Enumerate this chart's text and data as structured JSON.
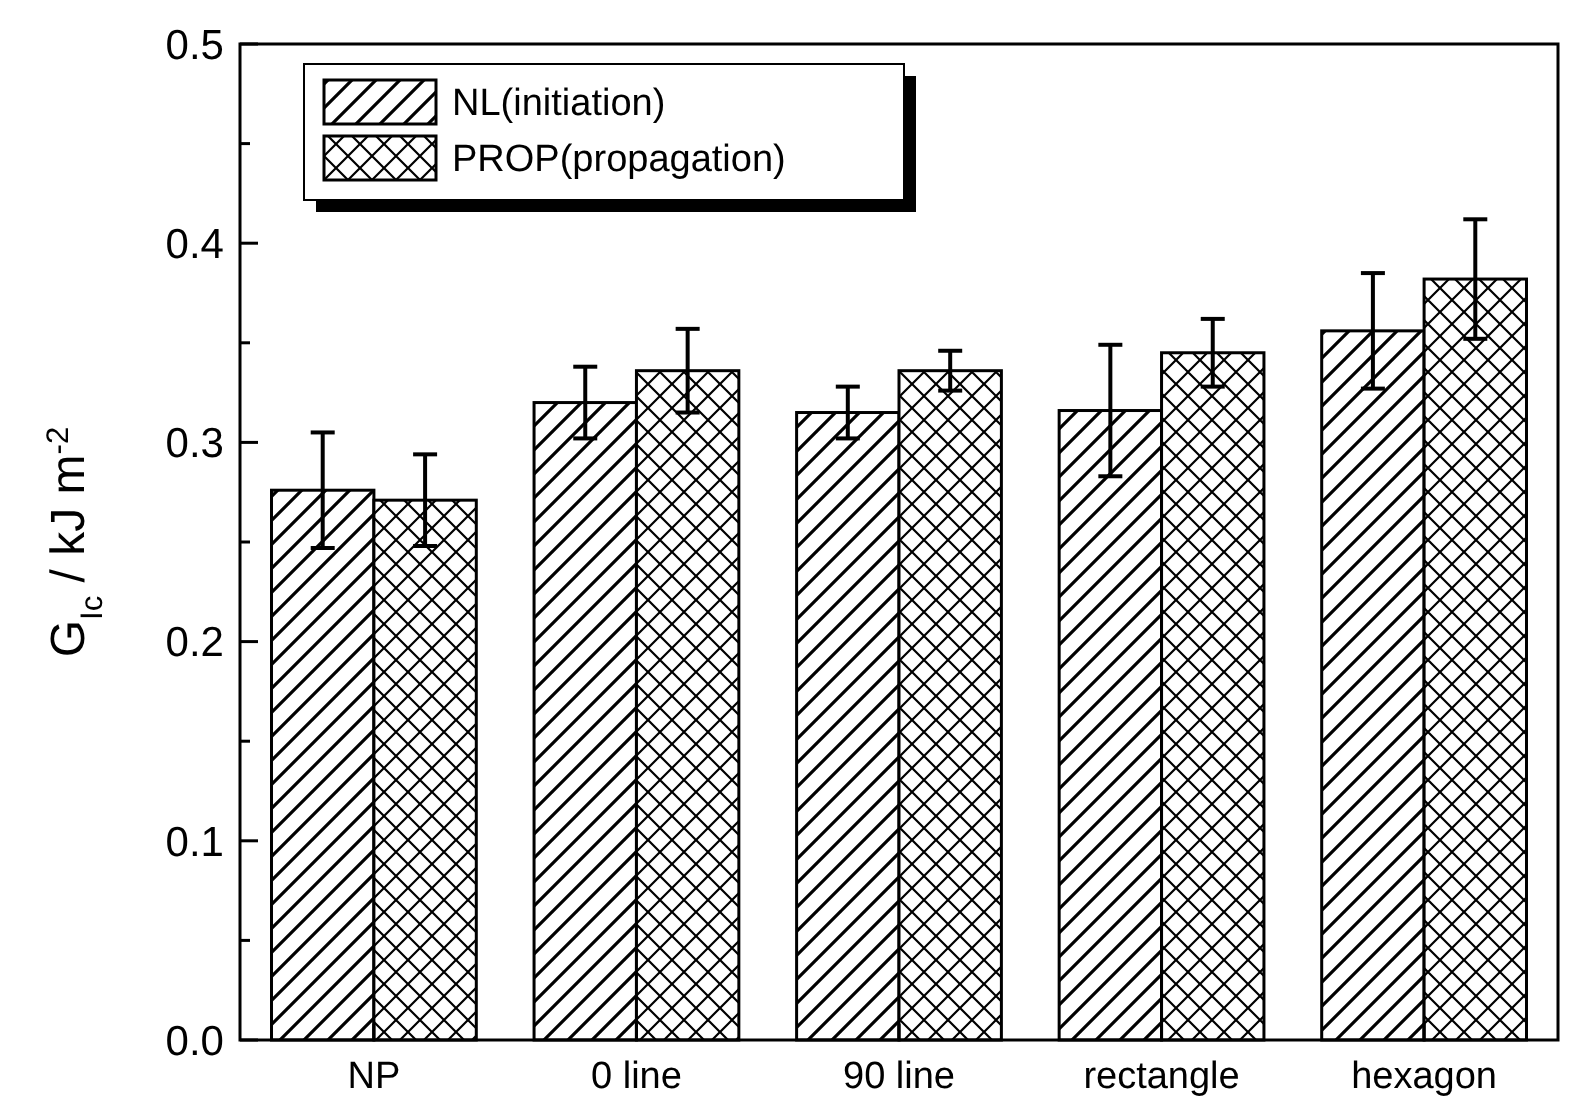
{
  "chart_data": {
    "type": "bar",
    "ylabel": "G$_{Ic}$ / kJ m$^{-2}$",
    "categories": [
      "NP",
      "0 line",
      "90 line",
      "rectangle",
      "hexagon"
    ],
    "series": [
      {
        "name": "NL(initiation)",
        "color": "#000000",
        "values": [
          0.276,
          0.32,
          0.315,
          0.316,
          0.356
        ],
        "errors": [
          0.029,
          0.018,
          0.013,
          0.033,
          0.029
        ]
      },
      {
        "name": "PROP(propagation)",
        "color": "#000000",
        "values": [
          0.271,
          0.336,
          0.336,
          0.345,
          0.382
        ],
        "errors": [
          0.023,
          0.021,
          0.01,
          0.017,
          0.03
        ]
      }
    ],
    "ylim": [
      0,
      0.5
    ],
    "yticks": [
      {
        "value": 0,
        "label": "0.0"
      },
      {
        "value": 0.05,
        "label": null
      },
      {
        "value": 0.1,
        "label": "0.1"
      },
      {
        "value": 0.15,
        "label": null
      },
      {
        "value": 0.2,
        "label": "0.2"
      },
      {
        "value": 0.25,
        "label": null
      },
      {
        "value": 0.3,
        "label": "0.3"
      },
      {
        "value": 0.35,
        "label": null
      },
      {
        "value": 0.4,
        "label": "0.4"
      },
      {
        "value": 0.45,
        "label": null
      },
      {
        "value": 0.5,
        "label": "0.5"
      }
    ],
    "grid": false,
    "legend": "top left"
  }
}
